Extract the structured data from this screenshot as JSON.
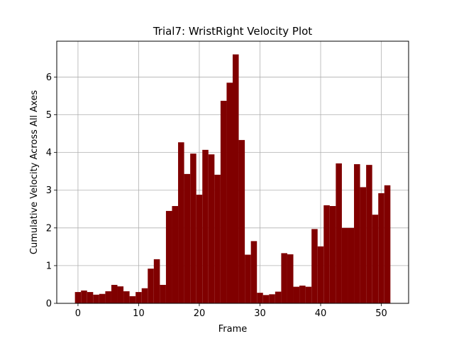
{
  "chart_data": {
    "type": "bar",
    "title": "Trial7: WristRight Velocity Plot",
    "xlabel": "Frame",
    "ylabel": "Cumulative Velocity Across All Axes",
    "xlim": [
      -3.5,
      54.5
    ],
    "ylim": [
      0,
      6.95
    ],
    "xticks": [
      0,
      10,
      20,
      30,
      40,
      50
    ],
    "yticks": [
      0,
      1,
      2,
      3,
      4,
      5,
      6
    ],
    "grid": true,
    "bar_color": "#800000",
    "x": [
      0,
      1,
      2,
      3,
      4,
      5,
      6,
      7,
      8,
      9,
      10,
      11,
      12,
      13,
      14,
      15,
      16,
      17,
      18,
      19,
      20,
      21,
      22,
      23,
      24,
      25,
      26,
      27,
      28,
      29,
      30,
      31,
      32,
      33,
      34,
      35,
      36,
      37,
      38,
      39,
      40,
      41,
      42,
      43,
      44,
      45,
      46,
      47,
      48,
      49,
      50,
      51
    ],
    "values": [
      0.3,
      0.34,
      0.3,
      0.23,
      0.25,
      0.32,
      0.49,
      0.45,
      0.32,
      0.19,
      0.3,
      0.4,
      0.92,
      1.17,
      0.49,
      2.45,
      2.58,
      4.27,
      3.43,
      3.97,
      2.88,
      4.07,
      3.95,
      3.41,
      5.37,
      5.85,
      6.6,
      4.33,
      1.29,
      1.65,
      0.28,
      0.22,
      0.24,
      0.31,
      1.33,
      1.3,
      0.44,
      0.47,
      0.44,
      1.97,
      1.51,
      2.6,
      2.58,
      3.71,
      2.0,
      2.0,
      3.69,
      3.08,
      3.67,
      2.35,
      2.92,
      3.13
    ]
  }
}
